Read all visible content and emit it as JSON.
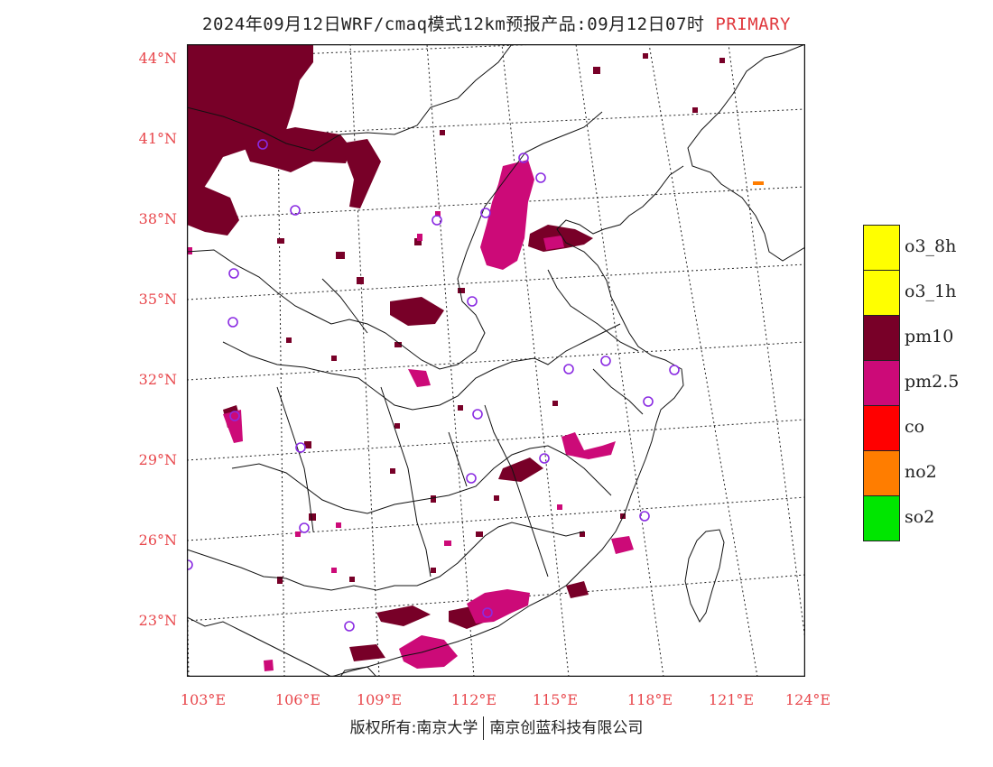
{
  "title": {
    "text": "2024年09月12日WRF/cmaq模式12km预报产品:09月12日07时",
    "tag": "PRIMARY"
  },
  "map": {
    "lat_labels": [
      "44°N",
      "41°N",
      "38°N",
      "35°N",
      "32°N",
      "29°N",
      "26°N",
      "23°N"
    ],
    "lon_labels": [
      "103°E",
      "106°E",
      "109°E",
      "112°E",
      "115°E",
      "118°E",
      "121°E",
      "124°E"
    ]
  },
  "legend": [
    {
      "label": "o3_8h",
      "color": "#ffff00"
    },
    {
      "label": "o3_1h",
      "color": "#ffff00"
    },
    {
      "label": "pm10",
      "color": "#780028"
    },
    {
      "label": "pm2.5",
      "color": "#cc0a78"
    },
    {
      "label": "co",
      "color": "#ff0000"
    },
    {
      "label": "no2",
      "color": "#ff7d00"
    },
    {
      "label": "so2",
      "color": "#00e600"
    }
  ],
  "colors": {
    "pm10": "#780028",
    "pm25": "#cc0a78",
    "no2": "#ff7d00",
    "station": "#8a2be2",
    "axis_label": "#e8464b"
  },
  "footer": {
    "left": "版权所有:南京大学",
    "right": "南京创蓝科技有限公司"
  }
}
